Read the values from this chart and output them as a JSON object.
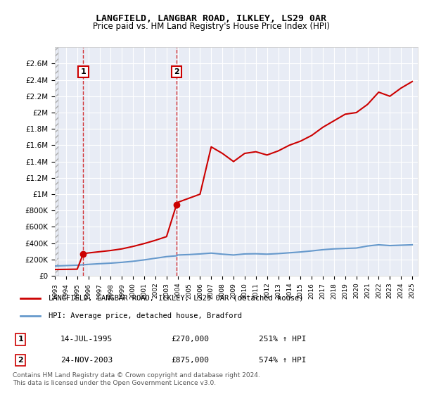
{
  "title": "LANGFIELD, LANGBAR ROAD, ILKLEY, LS29 0AR",
  "subtitle": "Price paid vs. HM Land Registry's House Price Index (HPI)",
  "legend_line1": "LANGFIELD, LANGBAR ROAD, ILKLEY, LS29 0AR (detached house)",
  "legend_line2": "HPI: Average price, detached house, Bradford",
  "footnote": "Contains HM Land Registry data © Crown copyright and database right 2024.\nThis data is licensed under the Open Government Licence v3.0.",
  "transaction1_date": "14-JUL-1995",
  "transaction1_price": "£270,000",
  "transaction1_hpi": "251% ↑ HPI",
  "transaction2_date": "24-NOV-2003",
  "transaction2_price": "£875,000",
  "transaction2_hpi": "574% ↑ HPI",
  "transaction1_x": 1995.54,
  "transaction1_y": 270000,
  "transaction2_x": 2003.9,
  "transaction2_y": 875000,
  "property_color": "#cc0000",
  "hpi_color": "#6699cc",
  "background_hatch_color": "#e8e8f0",
  "ylim": [
    0,
    2800000
  ],
  "xlim": [
    1993,
    2025.5
  ],
  "yticks": [
    0,
    200000,
    400000,
    600000,
    800000,
    1000000,
    1200000,
    1400000,
    1600000,
    1800000,
    2000000,
    2200000,
    2400000,
    2600000
  ],
  "ytick_labels": [
    "£0",
    "£200K",
    "£400K",
    "£600K",
    "£800K",
    "£1M",
    "£1.2M",
    "£1.4M",
    "£1.6M",
    "£1.8M",
    "£2M",
    "£2.2M",
    "£2.4M",
    "£2.6M"
  ],
  "hpi_years": [
    1993,
    1994,
    1995,
    1995.54,
    1996,
    1997,
    1998,
    1999,
    2000,
    2001,
    2002,
    2003,
    2003.9,
    2004,
    2005,
    2006,
    2007,
    2008,
    2009,
    2010,
    2011,
    2012,
    2013,
    2014,
    2015,
    2016,
    2017,
    2018,
    2019,
    2020,
    2021,
    2022,
    2023,
    2024,
    2025
  ],
  "hpi_values": [
    120000,
    125000,
    130000,
    135000,
    140000,
    148000,
    155000,
    165000,
    178000,
    195000,
    215000,
    235000,
    245000,
    255000,
    260000,
    268000,
    278000,
    265000,
    255000,
    268000,
    270000,
    265000,
    272000,
    282000,
    292000,
    305000,
    320000,
    330000,
    335000,
    340000,
    365000,
    380000,
    370000,
    375000,
    380000
  ],
  "property_years_before": [
    1993,
    1993.5,
    1994,
    1994.5,
    1995,
    1995.54
  ],
  "property_values_before": [
    77000,
    78000,
    79000,
    80000,
    81000,
    270000
  ],
  "property_years_after1": [
    1995.54,
    1996,
    1997,
    1998,
    1999,
    2000,
    2001,
    2002,
    2003,
    2003.9
  ],
  "property_values_after1": [
    270000,
    280000,
    295000,
    310000,
    330000,
    360000,
    395000,
    435000,
    480000,
    875000
  ],
  "property_years_after2": [
    2003.9,
    2004,
    2005,
    2006,
    2007,
    2008,
    2009,
    2010,
    2011,
    2012,
    2013,
    2014,
    2015,
    2016,
    2017,
    2018,
    2019,
    2020,
    2021,
    2022,
    2023,
    2024,
    2025
  ],
  "property_values_after2": [
    875000,
    900000,
    950000,
    1000000,
    1580000,
    1500000,
    1400000,
    1500000,
    1520000,
    1480000,
    1530000,
    1600000,
    1650000,
    1720000,
    1820000,
    1900000,
    1980000,
    2000000,
    2100000,
    2250000,
    2200000,
    2300000,
    2380000
  ]
}
